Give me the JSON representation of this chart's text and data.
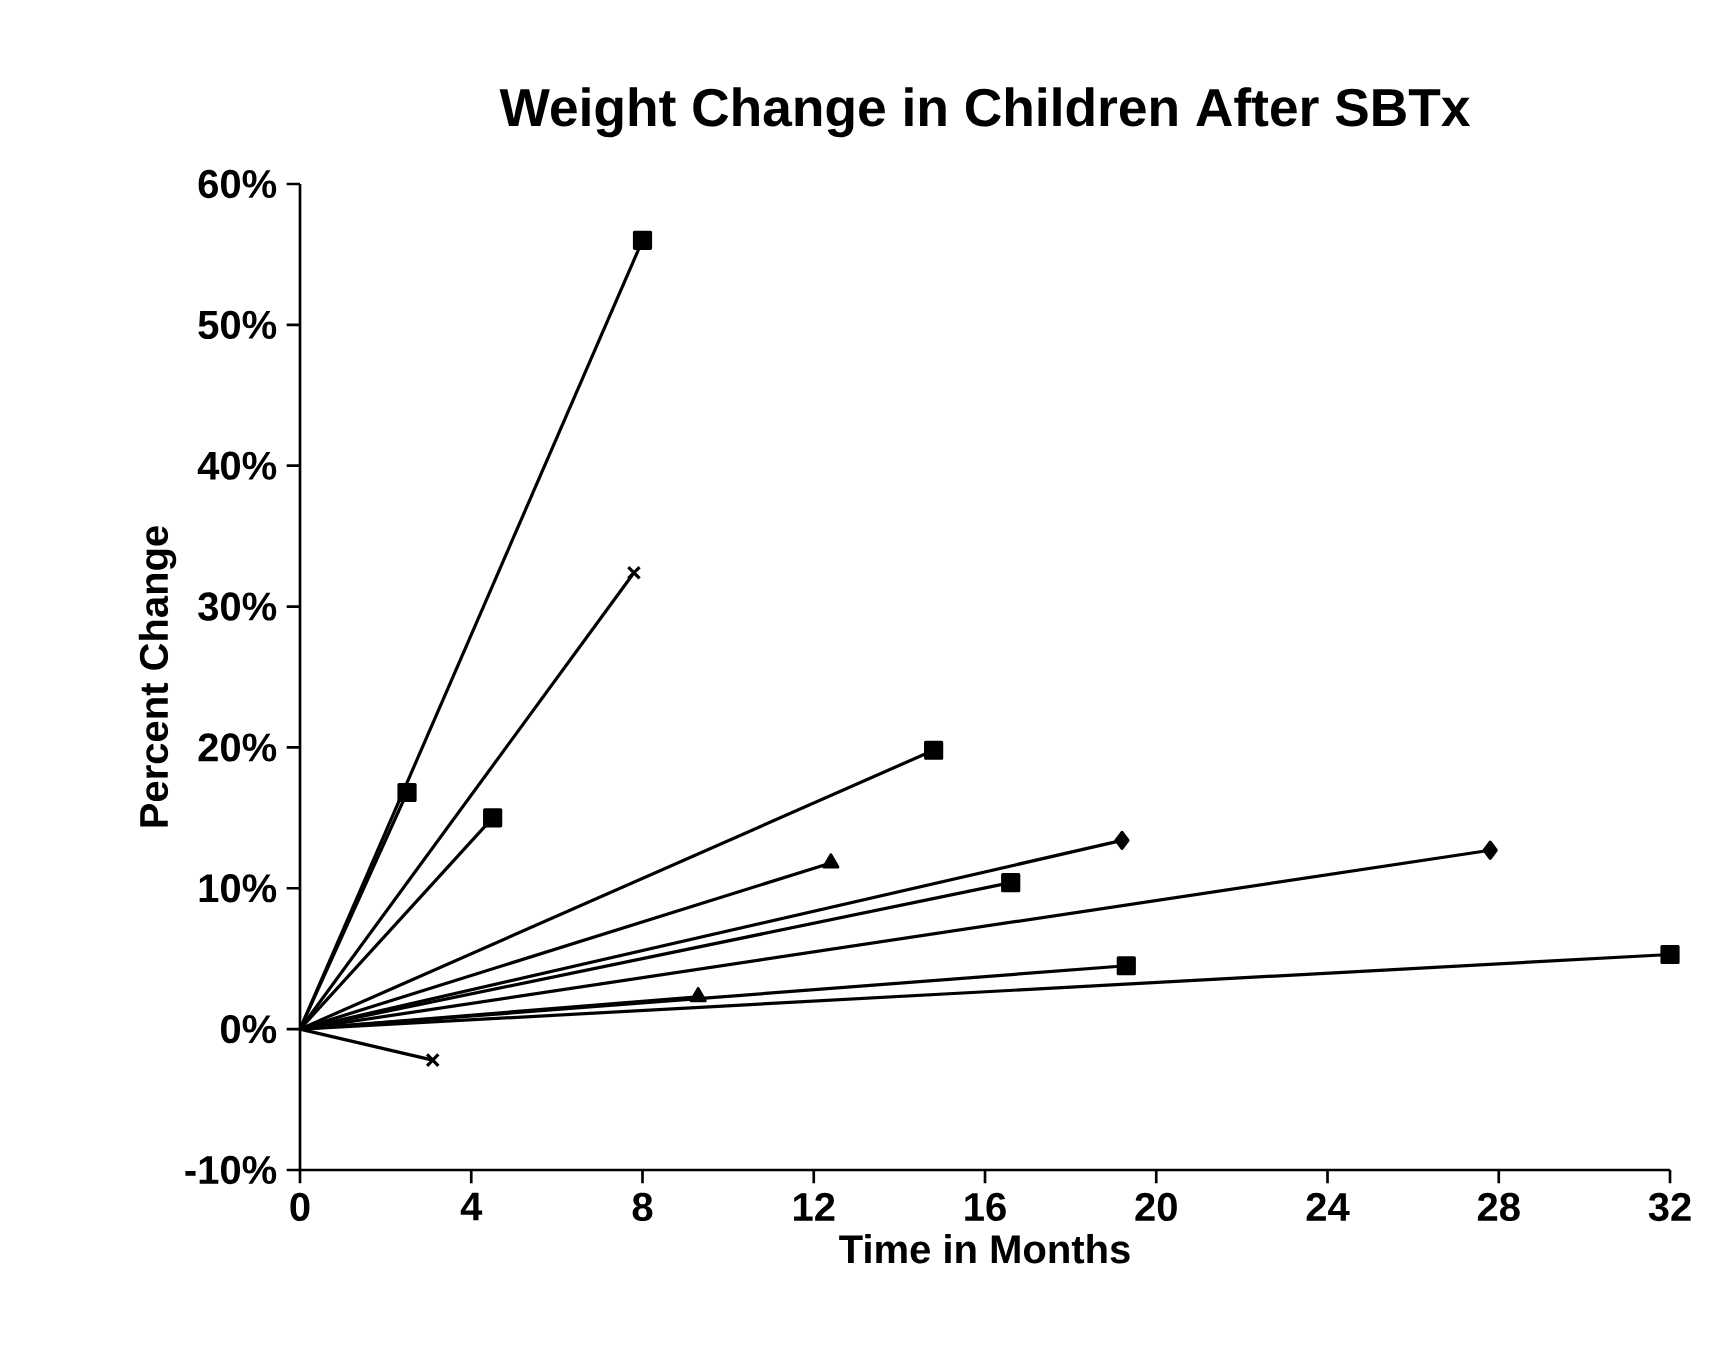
{
  "chart_data": {
    "type": "line",
    "title": "Weight Change in Children After SBTx",
    "xlabel": "Time in Months",
    "ylabel": "Percent Change",
    "xlim": [
      0,
      32
    ],
    "xticks": [
      0,
      4,
      8,
      12,
      16,
      20,
      24,
      28,
      32
    ],
    "ylim": [
      -10,
      60
    ],
    "yticks": [
      {
        "value": -10,
        "label": "-10%"
      },
      {
        "value": 0,
        "label": "0%"
      },
      {
        "value": 10,
        "label": "10%"
      },
      {
        "value": 20,
        "label": "20%"
      },
      {
        "value": 30,
        "label": "30%"
      },
      {
        "value": 40,
        "label": "40%"
      },
      {
        "value": 50,
        "label": "50%"
      },
      {
        "value": 60,
        "label": "60%"
      }
    ],
    "grid": false,
    "line_style": "solid",
    "series": [
      {
        "color": "#000000",
        "marker": "square",
        "x": [
          0,
          8
        ],
        "values": [
          0,
          56
        ]
      },
      {
        "color": "#000000",
        "marker": "square",
        "x": [
          0,
          2.5
        ],
        "values": [
          0,
          16.8
        ]
      },
      {
        "color": "#000000",
        "marker": "cross",
        "x": [
          0,
          7.8
        ],
        "values": [
          0,
          32.4
        ]
      },
      {
        "color": "#000000",
        "marker": "square",
        "x": [
          0,
          4.5
        ],
        "values": [
          0,
          15
        ]
      },
      {
        "color": "#000000",
        "marker": "square",
        "x": [
          0,
          14.8
        ],
        "values": [
          0,
          19.8
        ]
      },
      {
        "color": "#000000",
        "marker": "triangle",
        "x": [
          0,
          12.4
        ],
        "values": [
          0,
          11.8
        ]
      },
      {
        "color": "#000000",
        "marker": "diamond",
        "x": [
          0,
          19.2
        ],
        "values": [
          0,
          13.4
        ]
      },
      {
        "color": "#000000",
        "marker": "square",
        "x": [
          0,
          16.6
        ],
        "values": [
          0,
          10.4
        ]
      },
      {
        "color": "#000000",
        "marker": "diamond",
        "x": [
          0,
          27.8
        ],
        "values": [
          0,
          12.7
        ]
      },
      {
        "color": "#000000",
        "marker": "square",
        "x": [
          0,
          19.3
        ],
        "values": [
          0,
          4.5
        ]
      },
      {
        "color": "#000000",
        "marker": "square",
        "x": [
          0,
          32
        ],
        "values": [
          0,
          5.3
        ]
      },
      {
        "color": "#000000",
        "marker": "triangle",
        "x": [
          0,
          9.3
        ],
        "values": [
          0,
          2.3
        ]
      },
      {
        "color": "#000000",
        "marker": "cross",
        "x": [
          0,
          3.1
        ],
        "values": [
          0,
          -2.2
        ]
      }
    ]
  }
}
